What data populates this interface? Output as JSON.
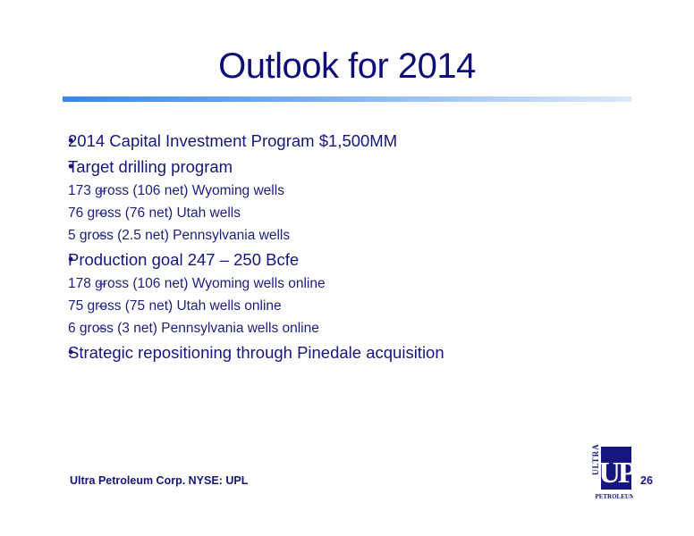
{
  "title": "Outlook for 2014",
  "bullets": [
    {
      "text": "2014 Capital Investment Program $1,500MM",
      "subs": []
    },
    {
      "text": "Target drilling program",
      "subs": [
        "173 gross (106 net) Wyoming wells",
        "76 gross (76 net) Utah wells",
        "5 gross (2.5 net) Pennsylvania wells"
      ]
    },
    {
      "text": "Production goal 247 – 250 Bcfe",
      "subs": [
        "178 gross (106 net) Wyoming wells online",
        "75 gross (75 net) Utah wells online",
        "6 gross (3 net) Pennsylvania wells online"
      ]
    },
    {
      "text": "Strategic repositioning through Pinedale acquisition",
      "subs": []
    }
  ],
  "bullet_glyph": "•",
  "sub_glyph": "–",
  "footer": {
    "company": "Ultra Petroleum Corp. NYSE: UPL",
    "page_number": "26"
  },
  "logo": {
    "icon": "ultra-petroleum-logo",
    "top_text": "ULTRA",
    "main_text": "UP",
    "bottom_text": "PETROLEUM"
  },
  "colors": {
    "text": "#16167e",
    "accent_bar_start": "#3a86e8",
    "accent_bar_end": "#dbe9fa"
  }
}
